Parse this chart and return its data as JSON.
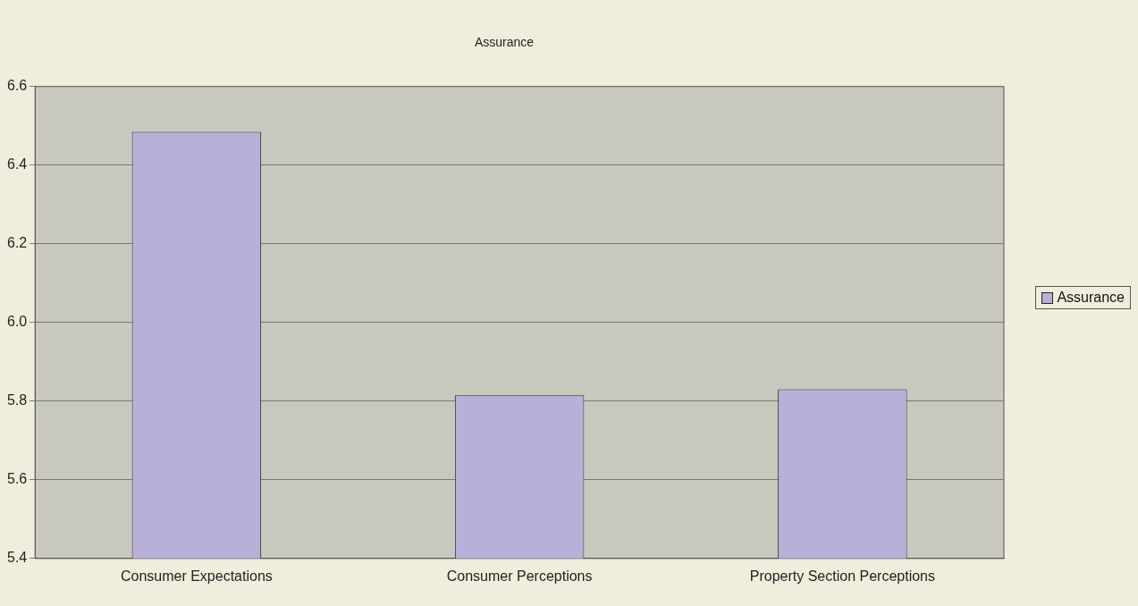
{
  "chart_data": {
    "type": "bar",
    "title": "Assurance",
    "categories": [
      "Consumer Expectations",
      "Consumer Perceptions",
      "Property Section Perceptions"
    ],
    "series": [
      {
        "name": "Assurance",
        "color": "#b8b0d8",
        "values": [
          6.485,
          5.815,
          5.83
        ]
      }
    ],
    "ylim": [
      5.4,
      6.6
    ],
    "yticks": [
      5.4,
      5.6,
      5.8,
      {
        "value": 6,
        "label": "6.0"
      },
      6.2,
      6.4,
      6.6
    ],
    "grid": "y",
    "legend": "right"
  }
}
